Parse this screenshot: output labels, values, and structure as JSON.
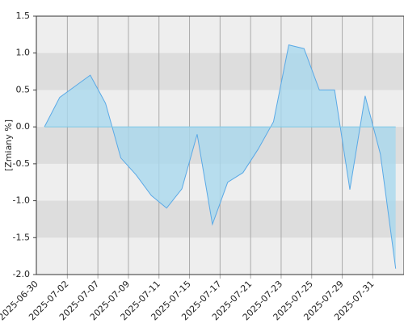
{
  "chart_data": {
    "type": "area",
    "ylabel": "[Zmiany %]",
    "categories": [
      "2025-06-30",
      null,
      "2025-07-02",
      null,
      "2025-07-07",
      null,
      "2025-07-09",
      null,
      "2025-07-11",
      null,
      "2025-07-15",
      null,
      "2025-07-17",
      null,
      "2025-07-21",
      null,
      "2025-07-23",
      null,
      "2025-07-25",
      null,
      "2025-07-29",
      null,
      "2025-07-31",
      null
    ],
    "values": [
      0.0,
      0.4,
      0.55,
      0.7,
      0.32,
      -0.42,
      -0.65,
      -0.93,
      -1.1,
      -0.84,
      -0.1,
      -1.32,
      -0.75,
      -0.62,
      -0.3,
      0.07,
      1.11,
      1.06,
      0.5,
      0.5,
      -0.85,
      0.42,
      -0.37,
      -1.92
    ],
    "color": "#5aa9e6",
    "fill": "#a9d8ee",
    "ylim": [
      -2.0,
      1.5
    ],
    "yticks": [
      {
        "value": -2.0,
        "label": "-2.0"
      },
      -1.5,
      {
        "value": -1.0,
        "label": "-1.0"
      },
      -0.5,
      {
        "value": 0.0,
        "label": "0.0"
      },
      0.5,
      {
        "value": 1.0,
        "label": "1.0"
      },
      1.5
    ],
    "grid": true
  }
}
